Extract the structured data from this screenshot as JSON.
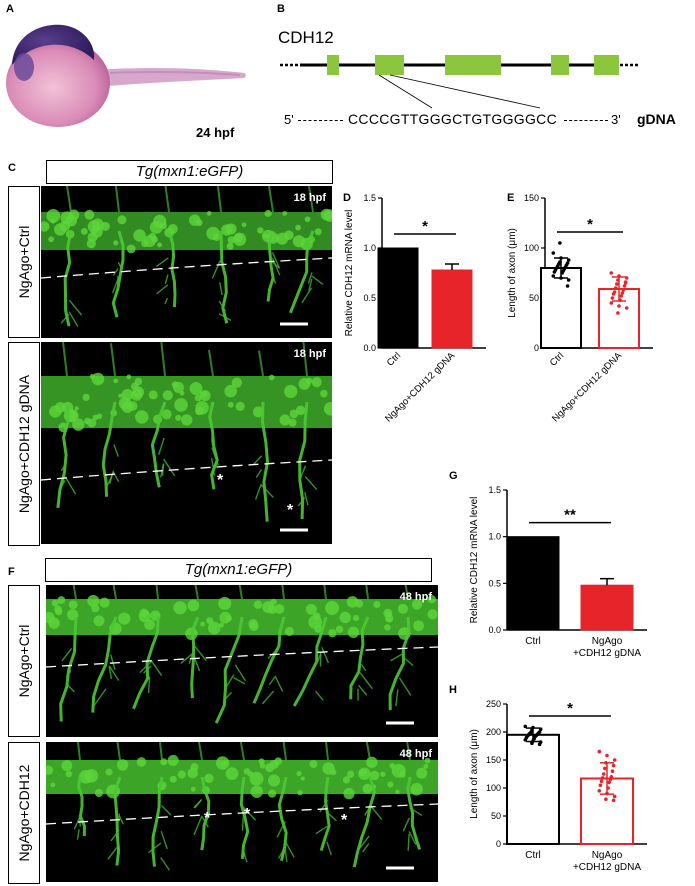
{
  "panels": {
    "A": {
      "label": "A",
      "stage": "24 hpf"
    },
    "B": {
      "label": "B",
      "gene": "CDH12",
      "prime5": "5'",
      "prime3": "3'",
      "sequence": "CCCCGTTGGGCTGTGGGGCC",
      "gdna": "gDNA"
    },
    "C": {
      "label": "C",
      "transgene": "Tg(mxn1:eGFP)",
      "rows": [
        {
          "condition": "NgAgo+Ctrl",
          "stage": "18 hpf",
          "asterisks": []
        },
        {
          "condition": "NgAgo+CDH12 gDNA",
          "stage": "18 hpf",
          "asterisks": [
            "*",
            "*"
          ]
        }
      ]
    },
    "D": {
      "label": "D"
    },
    "E": {
      "label": "E"
    },
    "F": {
      "label": "F",
      "transgene": "Tg(mxn1:eGFP)",
      "rows": [
        {
          "condition": "NgAgo+Ctrl",
          "stage": "48 hpf",
          "asterisks": []
        },
        {
          "condition": "NgAgo+CDH12",
          "stage": "48 hpf",
          "asterisks": [
            "*",
            "*",
            "*"
          ]
        }
      ]
    },
    "G": {
      "label": "G"
    },
    "H": {
      "label": "H"
    }
  },
  "chart_data": [
    {
      "id": "D",
      "type": "bar",
      "categories": [
        "Ctrl",
        "NgAgo+CDH12 gDNA"
      ],
      "values": [
        1.0,
        0.78
      ],
      "errors": [
        0,
        0.06
      ],
      "ylabel": "Relative CDH12 mRNA level",
      "ylim": [
        0,
        1.5
      ],
      "yticks": [
        "0.0",
        "0.5",
        "1.0",
        "1.5"
      ],
      "colors": [
        "#000000",
        "#e8242b"
      ],
      "significance": "*"
    },
    {
      "id": "E",
      "type": "bar",
      "categories": [
        "Ctrl",
        "NgAgo+CDH12 gDNA"
      ],
      "values": [
        80,
        59
      ],
      "errors": [
        10,
        12
      ],
      "ylabel": "Length of axon (μm)",
      "ylim": [
        0,
        150
      ],
      "yticks": [
        "0",
        "50",
        "100",
        "150"
      ],
      "colors": [
        "#000000",
        "#e8242b"
      ],
      "significance": "*",
      "points": [
        [
          95,
          90,
          88,
          86,
          85,
          84,
          83,
          82,
          81,
          80,
          79,
          78,
          77,
          76,
          75,
          72,
          70,
          68,
          105,
          62
        ],
        [
          75,
          72,
          70,
          68,
          66,
          64,
          62,
          60,
          58,
          56,
          55,
          54,
          52,
          50,
          48,
          45,
          42,
          40,
          35,
          65
        ]
      ]
    },
    {
      "id": "G",
      "type": "bar",
      "categories": [
        "Ctrl",
        "NgAgo\n+CDH12 gDNA"
      ],
      "values": [
        1.0,
        0.48
      ],
      "errors": [
        0,
        0.07
      ],
      "ylabel": "Relative CDH12 mRNA level",
      "ylim": [
        0,
        1.5
      ],
      "yticks": [
        "0.0",
        "0.5",
        "1.0",
        "1.5"
      ],
      "colors": [
        "#000000",
        "#e8242b"
      ],
      "significance": "**"
    },
    {
      "id": "H",
      "type": "bar",
      "categories": [
        "Ctrl",
        "NgAgo\n+CDH12 gDNA"
      ],
      "values": [
        195,
        117
      ],
      "errors": [
        12,
        28
      ],
      "ylabel": "Length of axon (μm)",
      "ylim": [
        0,
        250
      ],
      "yticks": [
        "0",
        "50",
        "100",
        "150",
        "200",
        "250"
      ],
      "colors": [
        "#000000",
        "#e8242b"
      ],
      "significance": "*",
      "points": [
        [
          210,
          208,
          205,
          203,
          200,
          199,
          198,
          197,
          196,
          195,
          194,
          193,
          192,
          190,
          188,
          186,
          184,
          182,
          180,
          178
        ],
        [
          165,
          158,
          150,
          145,
          140,
          135,
          130,
          125,
          120,
          118,
          115,
          112,
          110,
          105,
          100,
          95,
          90,
          85,
          80,
          78
        ]
      ]
    }
  ]
}
